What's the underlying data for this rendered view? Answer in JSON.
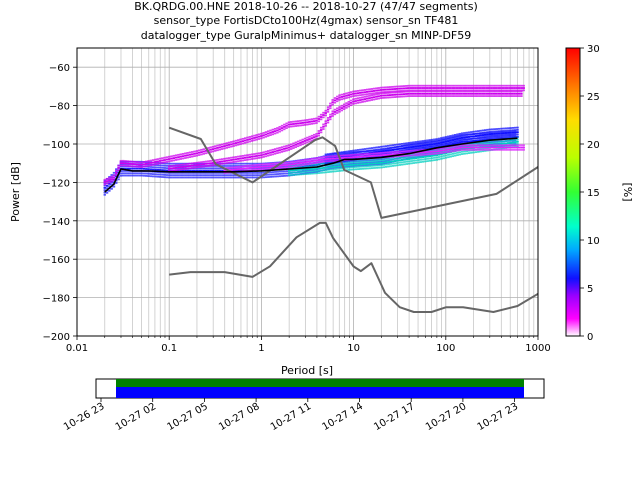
{
  "title_lines": [
    "BK.QRDG.00.HNE   2018-10-26 -- 2018-10-27  (47/47 segments)",
    "sensor_type FortisDCto100Hz(4gmax) sensor_sn TF481",
    "datalogger_type GuralpMinimus+ datalogger_sn MINP-DF59"
  ],
  "colorbar": {
    "label": "[%]",
    "ticks": [
      "0",
      "5",
      "10",
      "15",
      "20",
      "25",
      "30"
    ],
    "range": [
      0,
      30
    ]
  },
  "timeline": {
    "ticks": [
      "10-26 23",
      "10-27 02",
      "10-27 05",
      "10-27 08",
      "10-27 11",
      "10-27 14",
      "10-27 17",
      "10-27 20",
      "10-27 23"
    ],
    "colors": {
      "top": "#008000",
      "bottom": "#0000ff"
    }
  },
  "chart_data": {
    "type": "line",
    "xlabel": "Period [s]",
    "ylabel": "Power [dB]",
    "xscale": "log",
    "xlim": [
      0.01,
      1000
    ],
    "ylim": [
      -200,
      -50
    ],
    "grid": true,
    "x_tick_labels": [
      "0.01",
      "0.1",
      "1",
      "10",
      "100",
      "1000"
    ],
    "y_tick_labels": [
      "−200",
      "−180",
      "−160",
      "−140",
      "−120",
      "−100",
      "−80",
      "−60"
    ],
    "x_ticks": [
      0.01,
      0.1,
      1,
      10,
      100,
      1000
    ],
    "y_ticks": [
      -200,
      -180,
      -160,
      -140,
      -120,
      -100,
      -80,
      -60
    ],
    "series": [
      {
        "role": "new-high-noise-model",
        "color": "#666666",
        "x": [
          0.1,
          0.22,
          0.32,
          0.8,
          3.8,
          4.6,
          6.3,
          7.9,
          15.4,
          20,
          354.8,
          1000
        ],
        "y": [
          -91.5,
          -97.4,
          -110.5,
          -120,
          -98,
          -96.5,
          -101,
          -113.5,
          -120,
          -138.5,
          -126,
          -112
        ]
      },
      {
        "role": "new-low-noise-model",
        "color": "#666666",
        "x": [
          0.1,
          0.17,
          0.4,
          0.8,
          1.24,
          2.4,
          4.3,
          5,
          6,
          10,
          12,
          15.6,
          21.9,
          31.6,
          45,
          70,
          101,
          154,
          328,
          600,
          1000
        ],
        "y": [
          -168,
          -166.7,
          -166.7,
          -169.2,
          -163.7,
          -148.6,
          -141.1,
          -141.1,
          -149,
          -163.8,
          -166.2,
          -162.1,
          -177.5,
          -185,
          -187.5,
          -187.5,
          -185,
          -185,
          -187.5,
          -184.4,
          -178
        ]
      },
      {
        "role": "mode",
        "color": "#000000",
        "x": [
          0.02,
          0.025,
          0.03,
          0.04,
          0.06,
          0.1,
          0.2,
          0.5,
          1,
          2,
          4,
          6,
          8,
          10,
          20,
          40,
          80,
          150,
          300,
          600
        ],
        "y": [
          -125,
          -121,
          -113,
          -114,
          -114,
          -114.5,
          -114.5,
          -114.5,
          -114,
          -113,
          -112,
          -110,
          -108,
          -108,
          -107,
          -105,
          -102,
          -100,
          -98,
          -97
        ]
      },
      {
        "role": "pdf-dense",
        "color": "#2020ff",
        "x": [
          0.02,
          0.025,
          0.03,
          0.05,
          0.1,
          0.3,
          1,
          2,
          4,
          6,
          10,
          20,
          40,
          80,
          150,
          300,
          600
        ],
        "y": [
          -123,
          -119,
          -113,
          -113,
          -114,
          -114,
          -114,
          -113,
          -111,
          -109,
          -108,
          -107,
          -104,
          -102,
          -99,
          -98,
          -97
        ],
        "spread": 3
      },
      {
        "role": "pdf-spread-low",
        "color": "#00d0c0",
        "x": [
          2,
          4,
          10,
          20,
          40,
          80,
          150,
          300,
          600
        ],
        "y": [
          -114,
          -113,
          -111,
          -110,
          -108,
          -106,
          -103,
          -101,
          -99
        ],
        "spread": 2
      },
      {
        "role": "pdf-spread-high",
        "color": "#1010ff",
        "x": [
          5,
          10,
          20,
          40,
          80,
          150,
          300,
          600
        ],
        "y": [
          -108,
          -106,
          -104,
          -102,
          -100,
          -97,
          -95,
          -94
        ],
        "spread": 2
      },
      {
        "role": "pdf-outlier-1",
        "color": "#cc00ee",
        "x": [
          0.02,
          0.025,
          0.03,
          0.05,
          0.1,
          0.2,
          0.5,
          1,
          1.5,
          2,
          3,
          4,
          5,
          6,
          7,
          10,
          20,
          40,
          100,
          300,
          700
        ],
        "y": [
          -120,
          -118,
          -110,
          -111,
          -108,
          -105,
          -100,
          -96,
          -93,
          -90,
          -89,
          -88,
          -84,
          -78,
          -76,
          -74,
          -72,
          -71,
          -71,
          -71,
          -71
        ],
        "spread": 1
      },
      {
        "role": "pdf-outlier-2",
        "color": "#cc00ee",
        "x": [
          0.1,
          0.3,
          1,
          2,
          4,
          6,
          10,
          20,
          40,
          100,
          300,
          700
        ],
        "y": [
          -113,
          -110,
          -106,
          -102,
          -96,
          -84,
          -78,
          -75,
          -74,
          -74,
          -74,
          -74
        ],
        "spread": 1
      },
      {
        "role": "pdf-outlier-3",
        "color": "#dd22ff",
        "x": [
          0.4,
          1,
          2,
          5,
          10,
          20,
          40,
          80,
          150,
          300,
          700
        ],
        "y": [
          -114,
          -112,
          -111,
          -108,
          -107,
          -106,
          -105,
          -104,
          -102,
          -102,
          -102
        ],
        "spread": 1
      }
    ]
  }
}
